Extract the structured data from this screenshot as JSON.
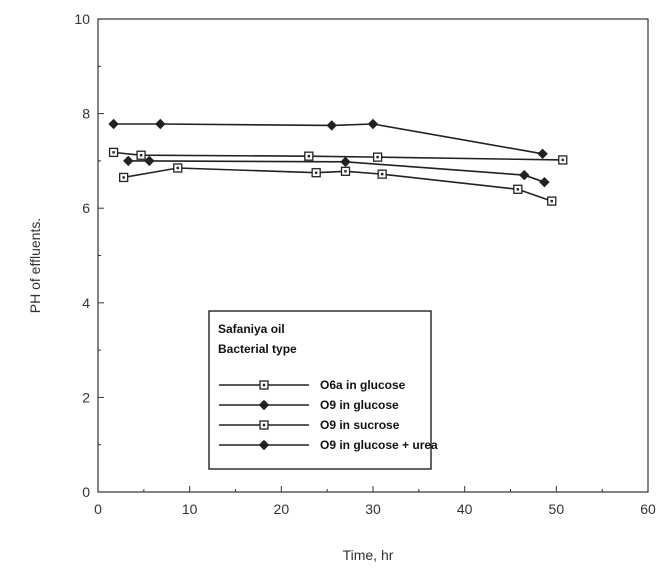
{
  "chart_data": {
    "type": "line",
    "title": "",
    "xlabel": "Time, hr",
    "ylabel": "PH of effluents.",
    "xlim": [
      0,
      60
    ],
    "ylim": [
      0,
      10
    ],
    "xticks": [
      0,
      10,
      20,
      30,
      40,
      50,
      60
    ],
    "yticks": [
      0,
      2,
      4,
      6,
      8,
      10
    ],
    "grid": false,
    "legend": {
      "placement": "lower-center",
      "title_lines": [
        "Safaniya oil",
        "Bacterial type"
      ]
    },
    "series": [
      {
        "name": "O6a in glucose",
        "marker": "open-square",
        "color": "#222222",
        "x": [
          2.8,
          8.7,
          23.8,
          27.0,
          31.0,
          45.8,
          49.5
        ],
        "y": [
          6.65,
          6.85,
          6.75,
          6.78,
          6.72,
          6.4,
          6.15
        ]
      },
      {
        "name": "O9 in glucose",
        "marker": "filled-diamond",
        "color": "#222222",
        "x": [
          3.3,
          5.6,
          27.0,
          46.5,
          48.7
        ],
        "y": [
          7.0,
          7.0,
          6.98,
          6.7,
          6.55
        ]
      },
      {
        "name": "O9 in sucrose",
        "marker": "open-square",
        "color": "#222222",
        "x": [
          1.7,
          4.7,
          23.0,
          30.5,
          50.7
        ],
        "y": [
          7.18,
          7.12,
          7.1,
          7.08,
          7.02
        ]
      },
      {
        "name": "O9 in glucose + urea",
        "marker": "filled-diamond",
        "color": "#222222",
        "x": [
          1.7,
          6.8,
          25.5,
          30.0,
          48.5
        ],
        "y": [
          7.78,
          7.78,
          7.75,
          7.78,
          7.15
        ]
      }
    ]
  }
}
